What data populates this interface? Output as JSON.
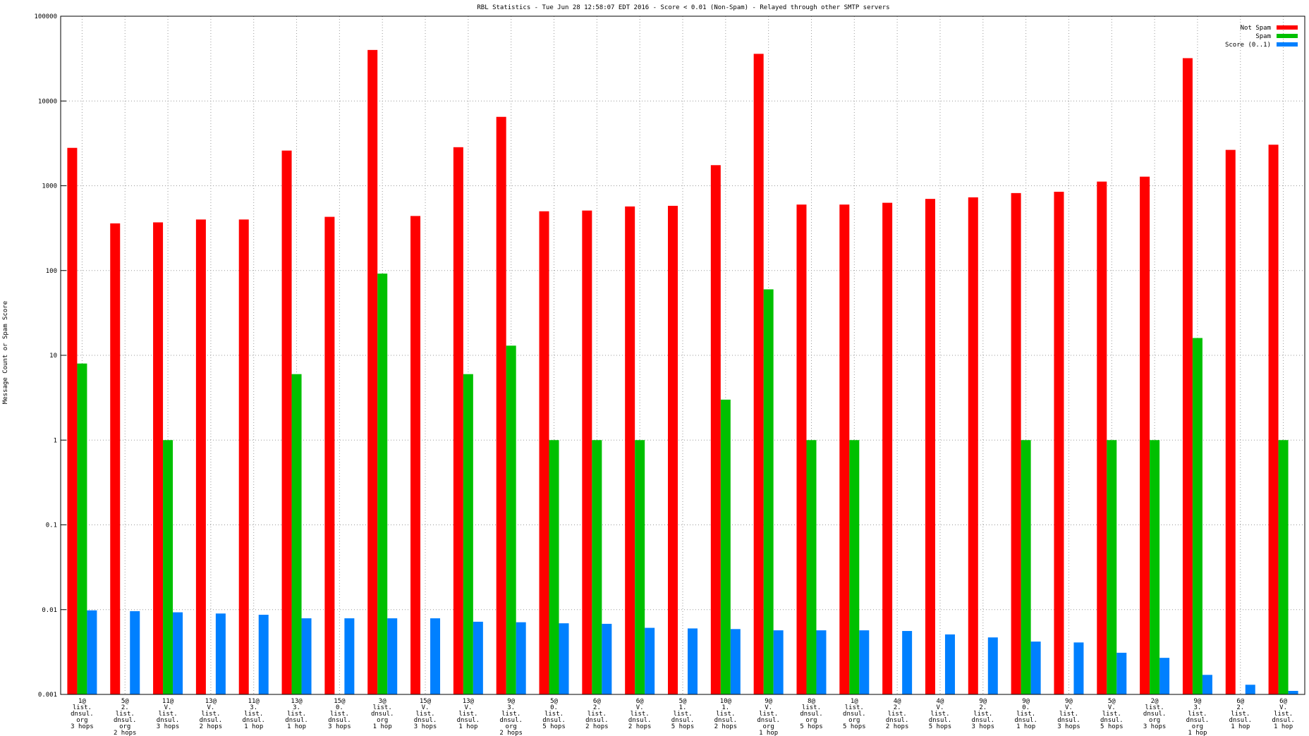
{
  "chart_data": {
    "type": "bar",
    "title": "RBL Statistics - Tue Jun 28 12:58:07 EDT 2016 - Score < 0.01 (Non-Spam) - Relayed through other SMTP servers",
    "ylabel": "Message Count or Spam Score",
    "log_scale": true,
    "grid": true,
    "legend": "top-right",
    "categories": [
      "1@\nlist.\ndnsul.\norg\n3 hops",
      "5@\n2.\nlist.\ndnsul.\norg\n2 hops",
      "11@\nV.\nlist.\ndnsul.\n3 hops",
      "13@\nV.\nlist.\ndnsul.\n2 hops",
      "11@\n3.\nlist.\ndnsul.\n1 hop",
      "13@\n3.\nlist.\ndnsul.\n1 hop",
      "15@\n0.\nlist.\ndnsul.\n3 hops",
      "3@\nlist.\ndnsul.\norg\n1 hop",
      "15@\nV.\nlist.\ndnsul.\n3 hops",
      "13@\nV.\nlist.\ndnsul.\n1 hop",
      "9@\n3.\nlist.\ndnsul.\norg\n2 hops",
      "5@\n0.\nlist.\ndnsul.\n5 hops",
      "6@\n2.\nlist.\ndnsul.\n2 hops",
      "6@\nV.\nlist.\ndnsul.\n2 hops",
      "5@\n1.\nlist.\ndnsul.\n5 hops",
      "10@\n1.\nlist.\ndnsul.\n2 hops",
      "9@\nV.\nlist.\ndnsul.\norg\n1 hop",
      "8@\nlist.\ndnsul.\norg\n5 hops",
      "1@\nlist.\ndnsul.\norg\n5 hops",
      "4@\n2.\nlist.\ndnsul.\n2 hops",
      "4@\nV.\nlist.\ndnsul.\n5 hops",
      "9@\n2.\nlist.\ndnsul.\n3 hops",
      "9@\n0.\nlist.\ndnsul.\n1 hop",
      "9@\nV.\nlist.\ndnsul.\n3 hops",
      "5@\nV.\nlist.\ndnsul.\n5 hops",
      "2@\nlist.\ndnsul.\norg\n3 hops",
      "9@\n3.\nlist.\ndnsul.\norg\n1 hop",
      "6@\n2.\nlist.\ndnsul.\n1 hop",
      "6@\nV.\nlist.\ndnsul.\n1 hop"
    ],
    "series": [
      {
        "name": "Not Spam",
        "color": "#ff0000",
        "values": [
          2800,
          360,
          370,
          400,
          400,
          2600,
          430,
          40000,
          440,
          2850,
          6500,
          500,
          510,
          570,
          580,
          1750,
          36000,
          600,
          600,
          630,
          700,
          730,
          820,
          850,
          1120,
          1280,
          32000,
          2650,
          3050
        ]
      },
      {
        "name": "Spam",
        "color": "#00c000",
        "values": [
          8,
          null,
          1,
          null,
          null,
          6,
          null,
          92,
          null,
          6,
          13,
          1,
          1,
          1,
          null,
          3,
          60,
          1,
          1,
          null,
          null,
          null,
          1,
          null,
          1,
          1,
          16,
          null,
          1
        ]
      },
      {
        "name": "Score (0..1)",
        "color": "#0080ff",
        "values": [
          0.0098,
          0.0096,
          0.0093,
          0.009,
          0.0087,
          0.0079,
          0.0079,
          0.0079,
          0.0079,
          0.0072,
          0.0071,
          0.0069,
          0.0068,
          0.0061,
          0.006,
          0.0059,
          0.0057,
          0.0057,
          0.0057,
          0.0056,
          0.0051,
          0.0047,
          0.0042,
          0.0041,
          0.0031,
          0.0027,
          0.0017,
          0.0013,
          0.0011
        ]
      }
    ],
    "ylim": [
      0.001,
      100000
    ],
    "yticks": [
      0.001,
      0.01,
      0.1,
      1,
      10,
      100,
      1000,
      10000,
      100000
    ]
  }
}
